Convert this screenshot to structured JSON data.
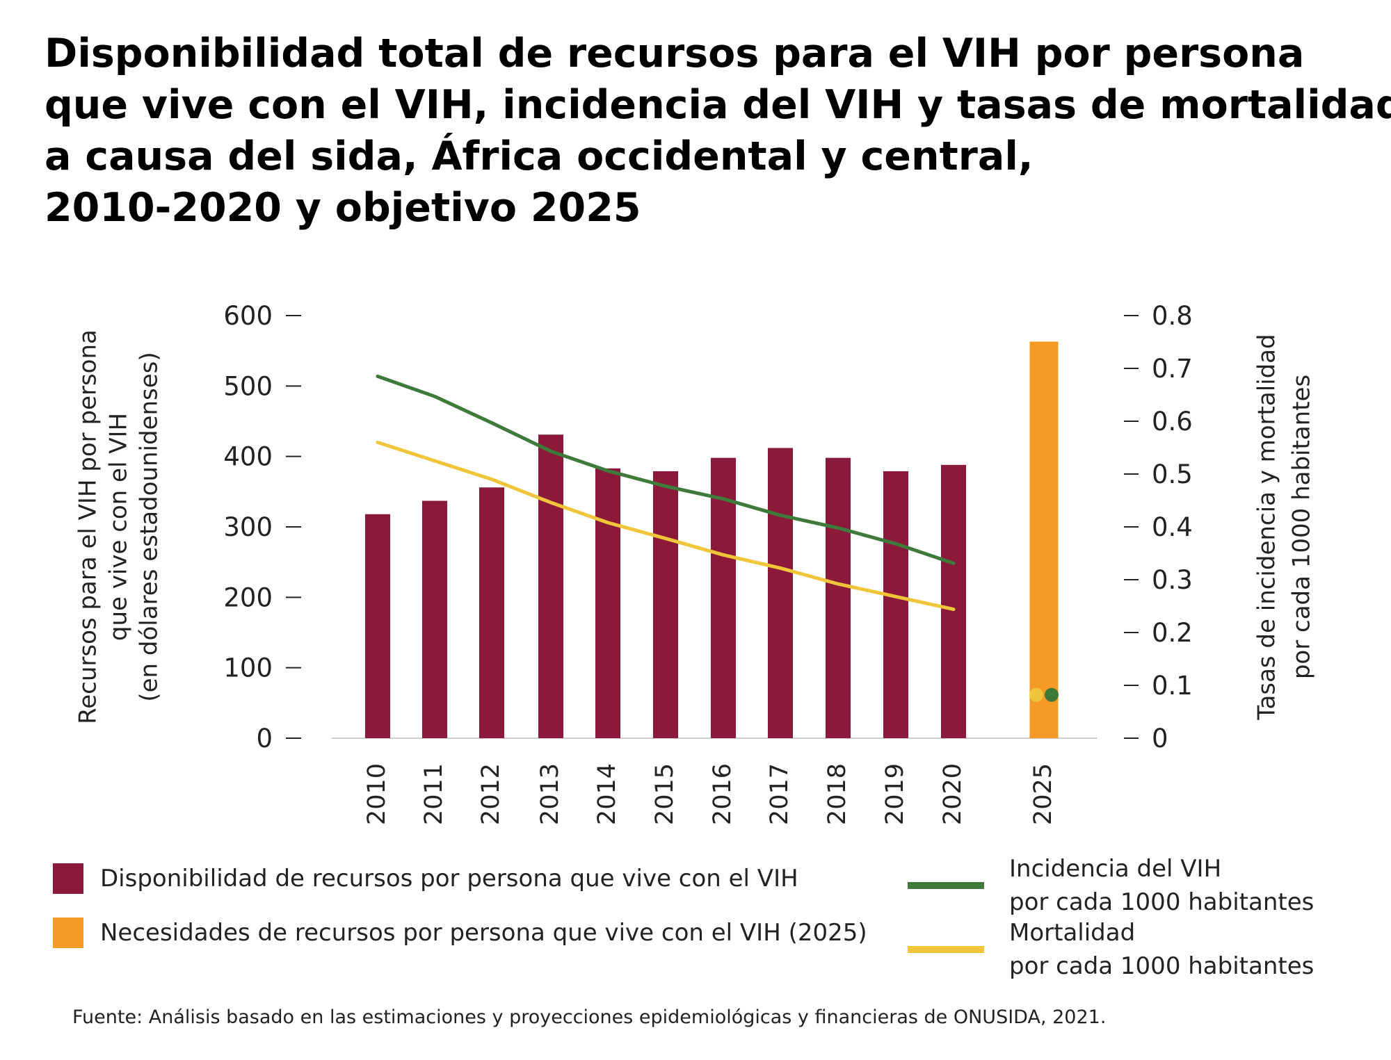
{
  "title_lines": [
    "Disponibilidad total de recursos para el VIH por persona",
    "que vive con el VIH, incidencia del VIH y tasas de mortalidad",
    "a causa del sida, África occidental y central,",
    "2010-2020 y objetivo 2025"
  ],
  "chart_data": {
    "type": "bar+line",
    "categories": [
      "2010",
      "2011",
      "2012",
      "2013",
      "2014",
      "2015",
      "2016",
      "2017",
      "2018",
      "2019",
      "2020",
      "2025"
    ],
    "y_left": {
      "label_lines": [
        "Recursos para el VIH por persona",
        "que vive con el VIH",
        "(en dólares estadounidenses)"
      ],
      "ticks": [
        "0",
        "100",
        "200",
        "300",
        "400",
        "500",
        "600"
      ],
      "ylim": [
        0,
        600
      ]
    },
    "y_right": {
      "label_lines": [
        "Tasas de incidencia y mortalidad",
        "por cada 1000 habitantes"
      ],
      "ticks": [
        "0",
        "0.1",
        "0.2",
        "0.3",
        "0.4",
        "0.5",
        "0.6",
        "0.7",
        "0.8"
      ],
      "ylim": [
        0,
        0.8
      ]
    },
    "series": [
      {
        "name": "Disponibilidad de recursos por persona que vive con el VIH",
        "type": "bar",
        "axis": "left",
        "color": "#8B1A3A",
        "values": [
          318,
          337,
          356,
          431,
          383,
          379,
          398,
          412,
          398,
          379,
          388,
          null
        ]
      },
      {
        "name": "Necesidades de recursos por persona que vive con el VIH (2025)",
        "type": "bar",
        "axis": "left",
        "color": "#F59A25",
        "values": [
          null,
          null,
          null,
          null,
          null,
          null,
          null,
          null,
          null,
          null,
          null,
          563
        ]
      },
      {
        "name": "Incidencia del VIH por cada 1000 habitantes",
        "type": "line",
        "axis": "right",
        "color": "#3E7A3A",
        "values": [
          0.685,
          0.647,
          0.597,
          0.543,
          0.506,
          0.477,
          0.453,
          0.422,
          0.398,
          0.368,
          0.331,
          0.082
        ]
      },
      {
        "name": "Mortalidad por cada 1000 habitantes",
        "type": "line",
        "axis": "right",
        "color": "#F0C53A",
        "values": [
          0.56,
          0.525,
          0.49,
          0.446,
          0.408,
          0.378,
          0.347,
          0.322,
          0.292,
          0.268,
          0.244,
          0.082
        ]
      }
    ]
  },
  "legend": {
    "bar_resources": "Disponibilidad de recursos por persona que vive con el VIH",
    "bar_needs": "Necesidades de recursos por persona que vive con el VIH (2025)",
    "incidence_lines": [
      "Incidencia del VIH",
      "por cada 1000 habitantes"
    ],
    "mortality_lines": [
      "Mortalidad",
      "por cada 1000 habitantes"
    ]
  },
  "source": "Fuente: Análisis basado en las estimaciones y proyecciones epidemiológicas y financieras de ONUSIDA, 2021."
}
